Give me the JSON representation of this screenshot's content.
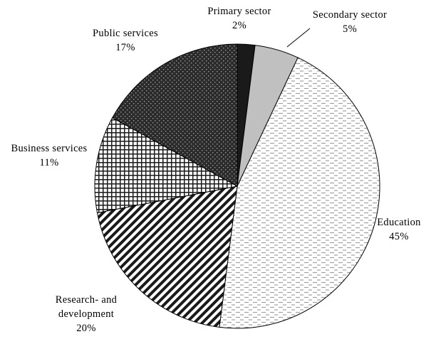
{
  "chart_data": {
    "type": "pie",
    "title": "",
    "start": "top",
    "direction": "clockwise",
    "slices": [
      {
        "label": "Primary sector",
        "value": 2,
        "value_label": "2%",
        "color": "#1a1a1a",
        "pattern": "solid-dark"
      },
      {
        "label": "Secondary sector",
        "value": 5,
        "value_label": "5%",
        "color": "#c0c0c0",
        "pattern": "solid-light"
      },
      {
        "label": "Education",
        "value": 45,
        "value_label": "45%",
        "color": "#ffffff",
        "pattern": "dashes"
      },
      {
        "label": "Research- and development",
        "label_lines": [
          "Research- and",
          "development"
        ],
        "value": 20,
        "value_label": "20%",
        "color": "#ffffff",
        "pattern": "diagonal-stripes"
      },
      {
        "label": "Business services",
        "value": 11,
        "value_label": "11%",
        "color": "#ffffff",
        "pattern": "grid"
      },
      {
        "label": "Public services",
        "value": 17,
        "value_label": "17%",
        "color": "#2b2b2b",
        "pattern": "dots-on-dark"
      }
    ]
  }
}
